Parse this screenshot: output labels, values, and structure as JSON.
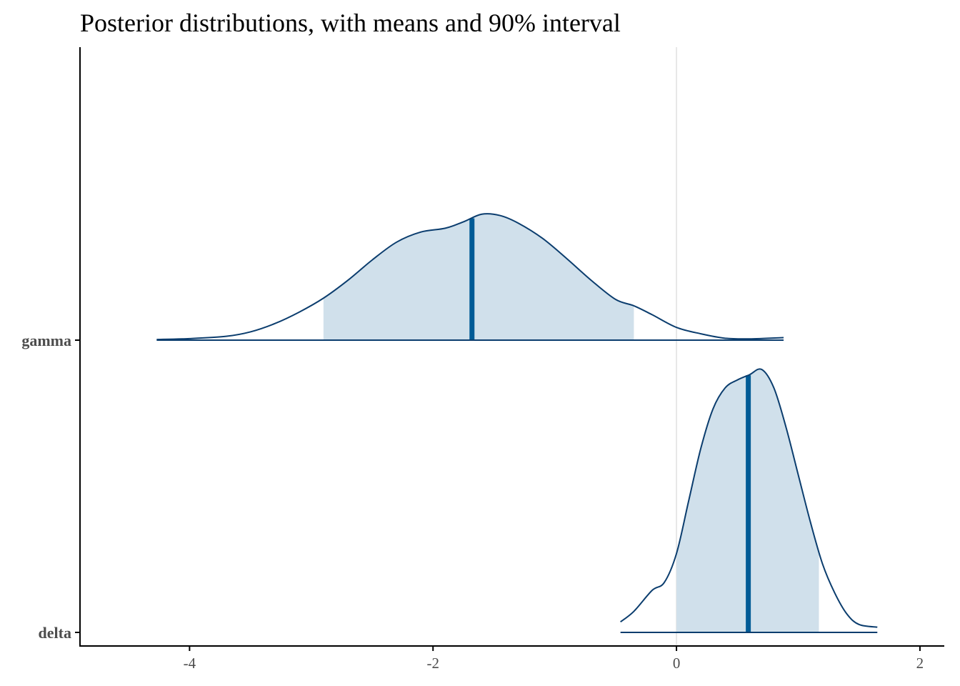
{
  "chart_data": {
    "type": "area",
    "title": "Posterior distributions, with means and 90% interval",
    "xlabel": "",
    "ylabel": "",
    "xlim": [
      -4.9,
      2.2
    ],
    "x_ticks": [
      -4,
      -2,
      0,
      2
    ],
    "x_tick_labels": [
      "-4",
      "-2",
      "0",
      "2"
    ],
    "reference_line_x": 0,
    "grid": false,
    "legend": "none",
    "colors": {
      "outline": "#0b3d6e",
      "fill": "#d0e0eb",
      "mean_line": "#005b96",
      "zero_line": "#e0e0e0",
      "axis": "#000000"
    },
    "series": [
      {
        "name": "gamma",
        "mean": -1.68,
        "interval_90": [
          -2.9,
          -0.35
        ],
        "range": [
          -4.27,
          0.88
        ],
        "density": [
          [
            -4.27,
            0.005
          ],
          [
            -4.0,
            0.012
          ],
          [
            -3.7,
            0.03
          ],
          [
            -3.5,
            0.065
          ],
          [
            -3.3,
            0.13
          ],
          [
            -3.1,
            0.22
          ],
          [
            -2.9,
            0.33
          ],
          [
            -2.7,
            0.47
          ],
          [
            -2.5,
            0.63
          ],
          [
            -2.3,
            0.77
          ],
          [
            -2.1,
            0.85
          ],
          [
            -1.9,
            0.88
          ],
          [
            -1.75,
            0.93
          ],
          [
            -1.6,
            0.99
          ],
          [
            -1.45,
            0.98
          ],
          [
            -1.3,
            0.92
          ],
          [
            -1.1,
            0.8
          ],
          [
            -0.9,
            0.64
          ],
          [
            -0.7,
            0.47
          ],
          [
            -0.5,
            0.32
          ],
          [
            -0.35,
            0.27
          ],
          [
            -0.2,
            0.2
          ],
          [
            0.0,
            0.1
          ],
          [
            0.2,
            0.05
          ],
          [
            0.4,
            0.015
          ],
          [
            0.6,
            0.01
          ],
          [
            0.88,
            0.02
          ]
        ]
      },
      {
        "name": "delta",
        "mean": 0.59,
        "interval_90": [
          0.0,
          1.17
        ],
        "range": [
          -0.46,
          1.65
        ],
        "density": [
          [
            -0.46,
            0.04
          ],
          [
            -0.35,
            0.08
          ],
          [
            -0.2,
            0.16
          ],
          [
            -0.1,
            0.19
          ],
          [
            0.0,
            0.3
          ],
          [
            0.1,
            0.5
          ],
          [
            0.2,
            0.7
          ],
          [
            0.3,
            0.85
          ],
          [
            0.4,
            0.93
          ],
          [
            0.5,
            0.96
          ],
          [
            0.6,
            0.98
          ],
          [
            0.7,
            1.0
          ],
          [
            0.8,
            0.93
          ],
          [
            0.9,
            0.78
          ],
          [
            1.0,
            0.6
          ],
          [
            1.1,
            0.42
          ],
          [
            1.2,
            0.26
          ],
          [
            1.3,
            0.15
          ],
          [
            1.4,
            0.07
          ],
          [
            1.5,
            0.03
          ],
          [
            1.65,
            0.02
          ]
        ]
      }
    ]
  }
}
